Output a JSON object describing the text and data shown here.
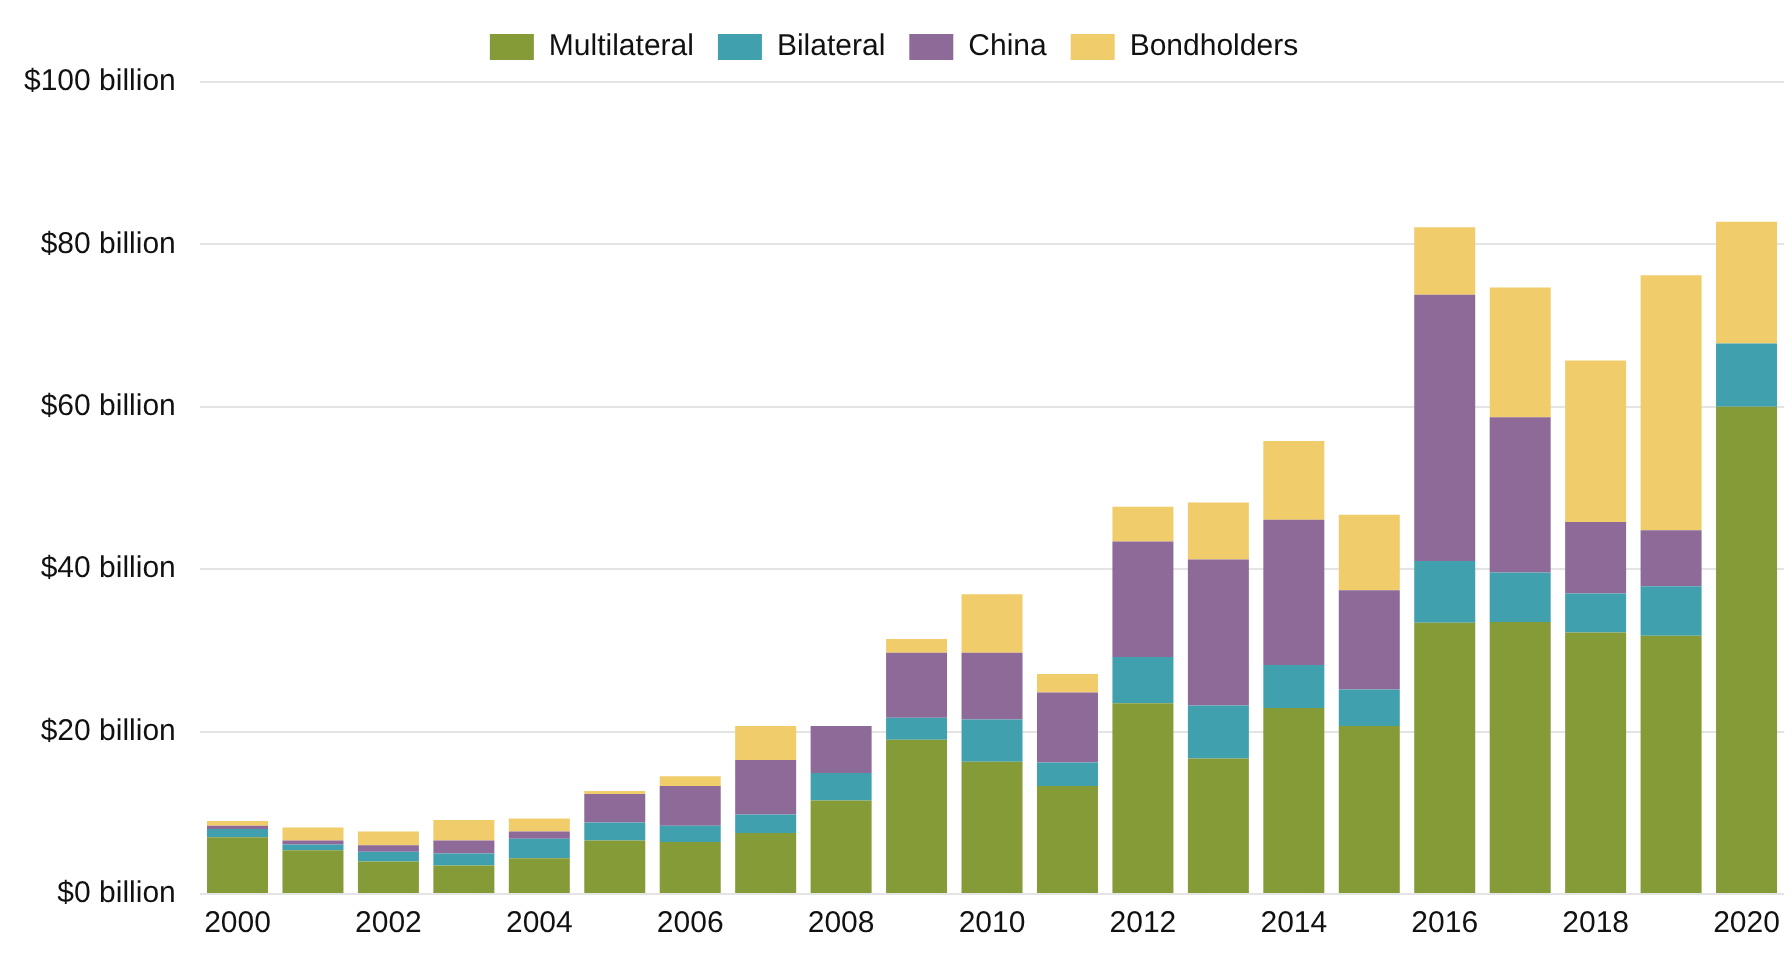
{
  "chart_data": {
    "type": "bar",
    "stacked": true,
    "grid": "y",
    "legend": "top",
    "categories": [
      "2000",
      null,
      "2002",
      null,
      "2004",
      null,
      "2006",
      null,
      "2008",
      null,
      "2010",
      null,
      "2012",
      null,
      "2014",
      null,
      "2016",
      null,
      "2018",
      null,
      "2020"
    ],
    "ylim": [
      0,
      100
    ],
    "yticks": [
      {
        "value": 0,
        "label": "$0 billion"
      },
      {
        "value": 20,
        "label": "$20 billion"
      },
      {
        "value": 40,
        "label": "$40 billion"
      },
      {
        "value": 60,
        "label": "$60 billion"
      },
      {
        "value": 80,
        "label": "$80 billion"
      },
      {
        "value": 100,
        "label": "$100 billion"
      }
    ],
    "series": [
      {
        "name": "Multilateral",
        "color": "#849b37",
        "values": [
          7.0,
          5.4,
          4.0,
          3.5,
          4.4,
          6.6,
          6.4,
          7.5,
          11.5,
          19.0,
          16.3,
          13.3,
          23.5,
          16.7,
          22.9,
          20.7,
          33.4,
          33.5,
          32.2,
          31.8,
          60.0
        ]
      },
      {
        "name": "Bilateral",
        "color": "#41a0ae",
        "values": [
          1.0,
          0.7,
          1.2,
          1.5,
          2.4,
          2.2,
          2.0,
          2.3,
          3.4,
          2.7,
          5.2,
          2.9,
          5.7,
          6.5,
          5.3,
          4.5,
          7.6,
          6.1,
          4.8,
          6.1,
          7.8
        ]
      },
      {
        "name": "China",
        "color": "#8e6a98",
        "values": [
          0.4,
          0.5,
          0.8,
          1.6,
          0.9,
          3.5,
          4.9,
          6.7,
          5.8,
          8.0,
          8.2,
          8.6,
          14.2,
          18.0,
          17.9,
          12.2,
          32.8,
          19.1,
          8.8,
          6.9,
          0
        ]
      },
      {
        "name": "Bondholders",
        "color": "#f0cc6a",
        "values": [
          0.6,
          1.6,
          1.7,
          2.5,
          1.6,
          0.4,
          1.2,
          4.2,
          0,
          1.7,
          7.2,
          2.3,
          4.3,
          7.0,
          9.7,
          9.3,
          8.3,
          16.0,
          19.9,
          31.4,
          15.0
        ]
      }
    ]
  }
}
